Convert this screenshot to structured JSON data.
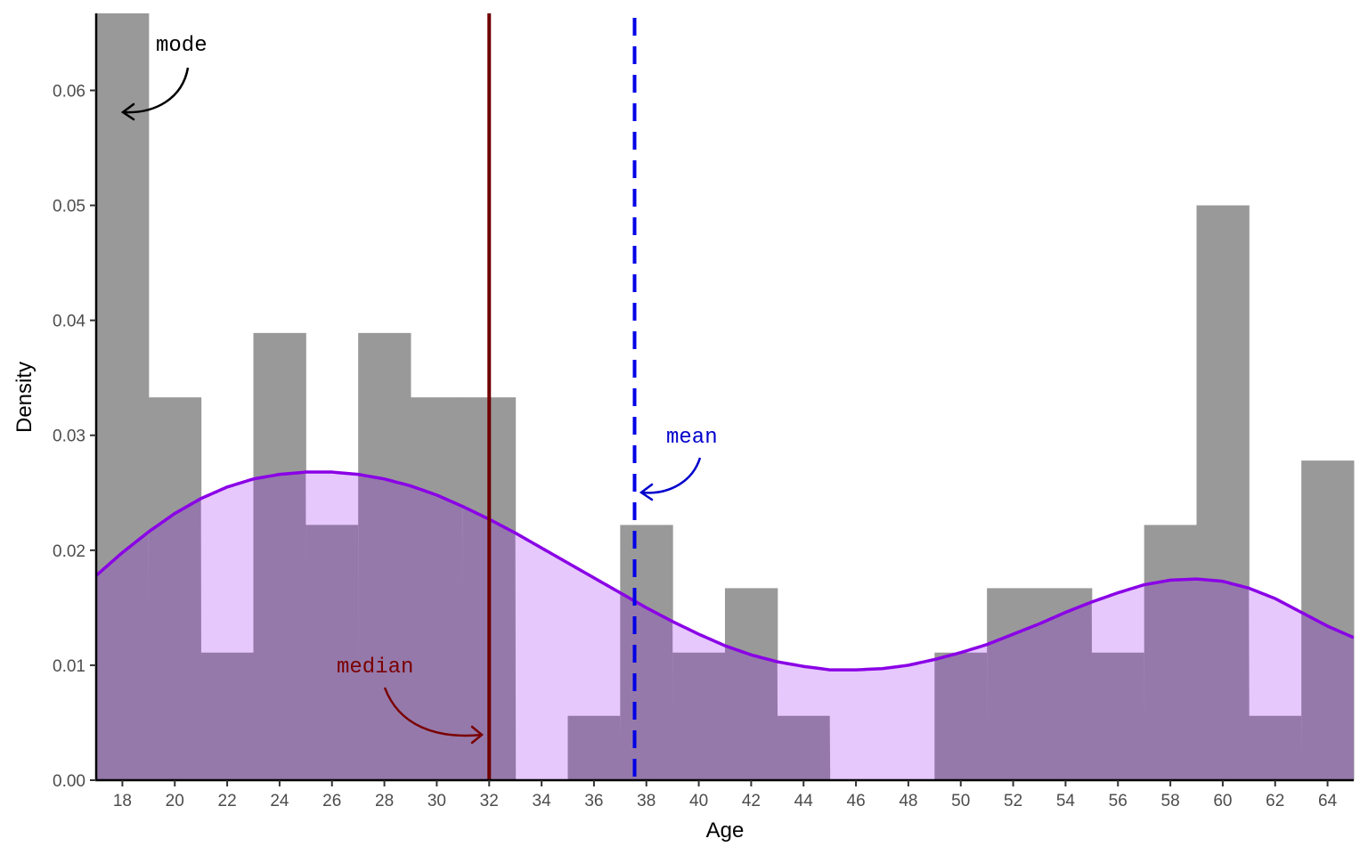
{
  "chart_data": {
    "type": "bar",
    "subtype": "histogram-with-density",
    "title": "",
    "xlabel": "Age",
    "ylabel": "Density",
    "xlim": [
      17,
      65
    ],
    "ylim": [
      0,
      0.0667
    ],
    "x_ticks": [
      18,
      20,
      22,
      24,
      26,
      28,
      30,
      32,
      34,
      36,
      38,
      40,
      42,
      44,
      46,
      48,
      50,
      52,
      54,
      56,
      58,
      60,
      62,
      64
    ],
    "y_ticks": [
      0.0,
      0.01,
      0.02,
      0.03,
      0.04,
      0.05,
      0.06
    ],
    "y_tick_labels": [
      "0.00",
      "0.01",
      "0.02",
      "0.03",
      "0.04",
      "0.05",
      "0.06"
    ],
    "bin_width": 2,
    "bins": [
      {
        "x0": 17,
        "x1": 19,
        "density": 0.0667
      },
      {
        "x0": 19,
        "x1": 21,
        "density": 0.0333
      },
      {
        "x0": 21,
        "x1": 23,
        "density": 0.0111
      },
      {
        "x0": 23,
        "x1": 25,
        "density": 0.0389
      },
      {
        "x0": 25,
        "x1": 27,
        "density": 0.0222
      },
      {
        "x0": 27,
        "x1": 29,
        "density": 0.0389
      },
      {
        "x0": 29,
        "x1": 31,
        "density": 0.0333
      },
      {
        "x0": 31,
        "x1": 33,
        "density": 0.0333
      },
      {
        "x0": 33,
        "x1": 35,
        "density": 0.0
      },
      {
        "x0": 35,
        "x1": 37,
        "density": 0.0056
      },
      {
        "x0": 37,
        "x1": 39,
        "density": 0.0222
      },
      {
        "x0": 39,
        "x1": 41,
        "density": 0.0111
      },
      {
        "x0": 41,
        "x1": 43,
        "density": 0.0167
      },
      {
        "x0": 43,
        "x1": 45,
        "density": 0.0056
      },
      {
        "x0": 45,
        "x1": 47,
        "density": 0.0
      },
      {
        "x0": 47,
        "x1": 49,
        "density": 0.0
      },
      {
        "x0": 49,
        "x1": 51,
        "density": 0.0111
      },
      {
        "x0": 51,
        "x1": 53,
        "density": 0.0167
      },
      {
        "x0": 53,
        "x1": 55,
        "density": 0.0167
      },
      {
        "x0": 55,
        "x1": 57,
        "density": 0.0111
      },
      {
        "x0": 57,
        "x1": 59,
        "density": 0.0222
      },
      {
        "x0": 59,
        "x1": 61,
        "density": 0.05
      },
      {
        "x0": 61,
        "x1": 63,
        "density": 0.0056
      },
      {
        "x0": 63,
        "x1": 65,
        "density": 0.0278
      }
    ],
    "density_curve": {
      "x": [
        17,
        18,
        19,
        20,
        21,
        22,
        23,
        24,
        25,
        26,
        27,
        28,
        29,
        30,
        31,
        32,
        33,
        34,
        35,
        36,
        37,
        38,
        39,
        40,
        41,
        42,
        43,
        44,
        45,
        46,
        47,
        48,
        49,
        50,
        51,
        52,
        53,
        54,
        55,
        56,
        57,
        58,
        59,
        60,
        61,
        62,
        63,
        64,
        65
      ],
      "y": [
        0.0178,
        0.0198,
        0.0216,
        0.0232,
        0.0245,
        0.0255,
        0.0262,
        0.0266,
        0.0268,
        0.0268,
        0.0266,
        0.0262,
        0.0256,
        0.0248,
        0.0238,
        0.0227,
        0.0215,
        0.0202,
        0.0189,
        0.0176,
        0.0163,
        0.015,
        0.0138,
        0.0127,
        0.0117,
        0.0109,
        0.0103,
        0.0099,
        0.0096,
        0.0096,
        0.0097,
        0.01,
        0.0105,
        0.0111,
        0.0118,
        0.0127,
        0.0136,
        0.0146,
        0.0155,
        0.0163,
        0.017,
        0.0174,
        0.0175,
        0.0173,
        0.0167,
        0.0158,
        0.0146,
        0.0134,
        0.0124
      ]
    },
    "lines": {
      "median": 32,
      "mean": 37.55
    },
    "annotations": {
      "mode": "mode",
      "mean": "mean",
      "median": "median"
    },
    "colors": {
      "bar": "#999999",
      "density_fill": "#E6C8FC",
      "overlap": "#9579AA",
      "curve": "#8A00E6",
      "median_line": "#6E0000",
      "mean_line": "#0000E6",
      "mode_text": "#000000",
      "mean_text": "#0000CC",
      "median_text": "#7A0000"
    },
    "grid": false,
    "legend": "none"
  }
}
